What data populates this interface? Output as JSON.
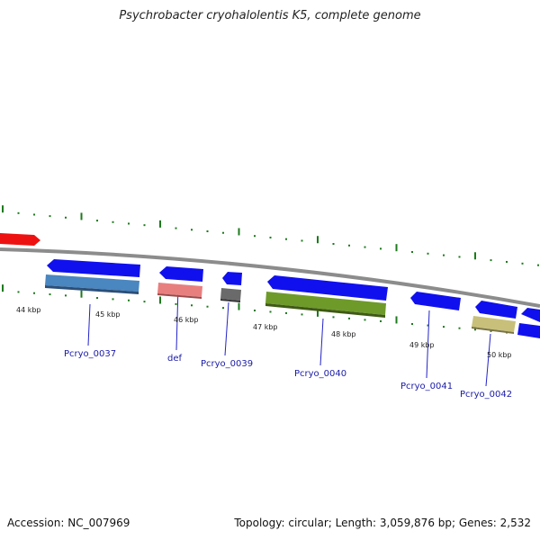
{
  "title": "Psychrobacter cryohalolentis K5, complete genome",
  "footer": {
    "accession": "Accession: NC_007969",
    "stats": "Topology: circular; Length: 3,059,876 bp; Genes: 2,532"
  },
  "colors": {
    "backbone": "#8c8c8c",
    "gene_arrow": "#1010ee",
    "tick": "#1c7a1c",
    "label_line": "#2323c8",
    "highlight_gene": "#ee1111"
  },
  "kbp_labels": [
    "44 kbp",
    "45 kbp",
    "46 kbp",
    "47 kbp",
    "48 kbp",
    "49 kbp",
    "50 kbp"
  ],
  "genes": [
    {
      "label": "Pcryo_0037",
      "feature_color": "#4a86c0"
    },
    {
      "label": "def",
      "feature_color": "#e87f7f"
    },
    {
      "label": "Pcryo_0039",
      "feature_color": "#6a6a6a"
    },
    {
      "label": "Pcryo_0040",
      "feature_color": "#6e9a2a"
    },
    {
      "label": "Pcryo_0041",
      "feature_color": null
    },
    {
      "label": "Pcryo_0042",
      "feature_color": "#c8c07a"
    }
  ]
}
